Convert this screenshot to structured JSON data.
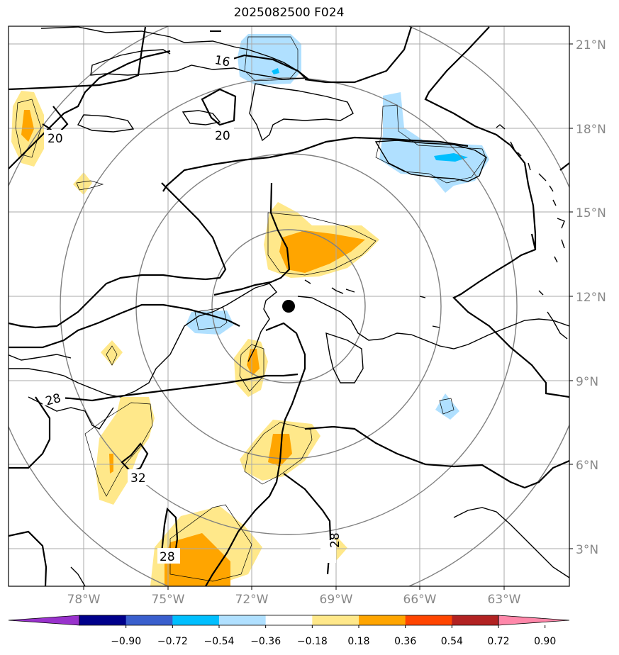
{
  "title": "2025082500 F024",
  "map": {
    "lat_labels": [
      "21°N",
      "18°N",
      "15°N",
      "12°N",
      "9°N",
      "6°N",
      "3°N"
    ],
    "lon_labels": [
      "78°W",
      "75°W",
      "72°W",
      "69°W",
      "66°W",
      "63°W"
    ],
    "contour_labels": [
      "16",
      "20",
      "20",
      "28",
      "32",
      "28",
      "28"
    ],
    "center_marker": "storm-center-dot"
  },
  "colorbar": {
    "ticks": [
      "−0.90",
      "−0.72",
      "−0.54",
      "−0.36",
      "−0.18",
      "0.18",
      "0.36",
      "0.54",
      "0.72",
      "0.90"
    ],
    "colors": [
      "#9932cc",
      "#00008b",
      "#3a5fcd",
      "#00bfff",
      "#b0e0ff",
      "#ffffff",
      "#ffe88a",
      "#ffa500",
      "#ff4500",
      "#b22222",
      "#ff88aa"
    ]
  },
  "colors": {
    "fill_light_blue": "#b0e0ff",
    "fill_cyan": "#00bfff",
    "fill_light_yellow": "#ffe88a",
    "fill_orange": "#ffa500",
    "grid": "#aaaaaa",
    "range_rings": "#808080",
    "tick_labels": "#888888"
  }
}
